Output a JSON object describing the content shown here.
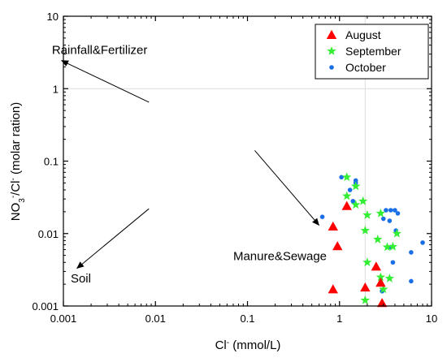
{
  "chart_data": {
    "type": "scatter",
    "x_scale": "log",
    "y_scale": "log",
    "xlim": [
      0.001,
      10
    ],
    "ylim": [
      0.001,
      10
    ],
    "xlabel": {
      "main": "Cl",
      "sup": "-",
      "rest": " (mmol/L)"
    },
    "ylabel": {
      "p1": "NO",
      "sub": "3",
      "sup1": "-",
      "p2": "/Cl",
      "sup2": "-",
      "p3": " (molar ration)"
    },
    "x_ticks": [
      {
        "value": 0.001,
        "label": "0.001"
      },
      {
        "value": 0.01,
        "label": "0.01"
      },
      {
        "value": 0.1,
        "label": "0.1"
      },
      {
        "value": 1,
        "label": "1"
      },
      {
        "value": 10,
        "label": "10"
      }
    ],
    "y_ticks": [
      {
        "value": 0.001,
        "label": "0.001"
      },
      {
        "value": 0.01,
        "label": "0.01"
      },
      {
        "value": 0.1,
        "label": "0.1"
      },
      {
        "value": 1,
        "label": "1"
      },
      {
        "value": 10,
        "label": "10"
      }
    ],
    "reference_lines": {
      "x": 1.9,
      "y": 1
    },
    "legend_position": "top-right",
    "series": [
      {
        "name": "August",
        "marker": "triangle",
        "color": "#ff0000",
        "points": [
          [
            0.85,
            0.0125
          ],
          [
            0.95,
            0.0067
          ],
          [
            1.2,
            0.024
          ],
          [
            0.85,
            0.0017
          ],
          [
            1.9,
            0.0018
          ],
          [
            2.5,
            0.0035
          ],
          [
            2.9,
            0.0011
          ],
          [
            2.8,
            0.0021
          ]
        ]
      },
      {
        "name": "September",
        "marker": "star",
        "color": "#33ee33",
        "points": [
          [
            1.2,
            0.06
          ],
          [
            1.2,
            0.033
          ],
          [
            1.5,
            0.045
          ],
          [
            1.5,
            0.025
          ],
          [
            1.8,
            0.028
          ],
          [
            2.0,
            0.018
          ],
          [
            2.8,
            0.019
          ],
          [
            1.9,
            0.011
          ],
          [
            2.6,
            0.0083
          ],
          [
            3.3,
            0.0065
          ],
          [
            3.8,
            0.0066
          ],
          [
            4.2,
            0.01
          ],
          [
            2.0,
            0.004
          ],
          [
            2.8,
            0.0025
          ],
          [
            3.5,
            0.0024
          ],
          [
            3.0,
            0.0017
          ],
          [
            1.9,
            0.0012
          ]
        ]
      },
      {
        "name": "October",
        "marker": "circle",
        "color": "#1a6fe8",
        "points": [
          [
            0.65,
            0.017
          ],
          [
            1.05,
            0.06
          ],
          [
            1.5,
            0.05
          ],
          [
            1.5,
            0.054
          ],
          [
            1.3,
            0.04
          ],
          [
            1.4,
            0.028
          ],
          [
            3.2,
            0.021
          ],
          [
            3.6,
            0.021
          ],
          [
            4.0,
            0.021
          ],
          [
            4.3,
            0.019
          ],
          [
            3.0,
            0.016
          ],
          [
            3.5,
            0.015
          ],
          [
            4.1,
            0.011
          ],
          [
            3.6,
            0.0065
          ],
          [
            8.0,
            0.0075
          ],
          [
            6.0,
            0.0055
          ],
          [
            3.8,
            0.004
          ],
          [
            6.0,
            0.0022
          ],
          [
            2.9,
            0.0016
          ]
        ]
      }
    ],
    "annotations": [
      {
        "text": "Rainfall&Fertilizer",
        "x": 0.00075,
        "y": 3.0
      },
      {
        "text": "Manure&Sewage",
        "x": 0.07,
        "y": 0.0043
      },
      {
        "text": "Soil",
        "x": 0.0012,
        "y": 0.0021
      }
    ],
    "arrows": [
      {
        "from": [
          0.0085,
          0.65
        ],
        "to": [
          0.00095,
          2.45
        ]
      },
      {
        "from": [
          0.12,
          0.14
        ],
        "to": [
          0.6,
          0.013
        ]
      },
      {
        "from": [
          0.0085,
          0.022
        ],
        "to": [
          0.0014,
          0.0033
        ]
      }
    ]
  }
}
